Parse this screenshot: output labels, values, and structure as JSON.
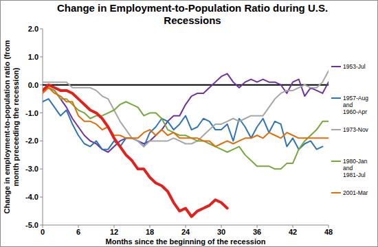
{
  "chart_data": {
    "type": "line",
    "title": "Change in Employment-to-Population Ratio during U.S. Recessions",
    "x_label": "Months since the beginning of the recession",
    "y_label": "Change in employment-to-population ratio (from month preceeding the recession)",
    "x": [
      0,
      1,
      2,
      3,
      4,
      5,
      6,
      7,
      8,
      9,
      10,
      11,
      12,
      13,
      14,
      15,
      16,
      17,
      18,
      19,
      20,
      21,
      22,
      23,
      24,
      25,
      26,
      27,
      28,
      29,
      30,
      31,
      32,
      33,
      34,
      35,
      36,
      37,
      38,
      39,
      40,
      41,
      42,
      43,
      44,
      45,
      46,
      47,
      48
    ],
    "xlim": [
      0,
      48
    ],
    "xticks": [
      0,
      6,
      12,
      18,
      24,
      30,
      36,
      42,
      48
    ],
    "ylim": [
      -5,
      2
    ],
    "yticks": [
      {
        "value": -5,
        "label": "-5.0"
      },
      {
        "value": -4,
        "label": "-4.0"
      },
      {
        "value": -3,
        "label": "-3.0"
      },
      {
        "value": -2,
        "label": "-2.0"
      },
      {
        "value": -1,
        "label": "-1.0"
      },
      {
        "value": 0,
        "label": "0.0"
      },
      {
        "value": 1,
        "label": "1.0"
      },
      {
        "value": 2,
        "label": "2.0"
      }
    ],
    "grid": false,
    "legend": "right",
    "series": [
      {
        "name": "1953-Jul",
        "color": "#7030a0",
        "values": [
          -0.2,
          -0.1,
          -0.2,
          -0.5,
          -0.8,
          -1.2,
          -1.5,
          -1.8,
          -2.0,
          -2.1,
          -2.3,
          -2.4,
          -2.2,
          -2.0,
          -1.9,
          -1.9,
          -2.0,
          -2.1,
          -2.0,
          -1.8,
          -1.6,
          -1.3,
          -1.1,
          -1.1,
          -0.7,
          -0.4,
          -0.3,
          -0.3,
          -0.1,
          0.1,
          0.3,
          0.4,
          0.1,
          -0.1,
          0.1,
          0.2,
          0.1,
          0.2,
          0.1,
          0.1,
          0.0,
          -0.3,
          0.1,
          0.2,
          -0.4,
          -0.1,
          -0.2,
          -0.3,
          0.1
        ]
      },
      {
        "name": "1957-Aug and 1960-Apr",
        "color": "#2e75b6",
        "values": [
          -0.6,
          -0.5,
          -0.8,
          -1.1,
          -0.9,
          -1.4,
          -1.8,
          -2.1,
          -2.2,
          -2.0,
          -2.3,
          -2.3,
          -2.0,
          -2.2,
          -1.9,
          -1.9,
          -2.0,
          -2.2,
          -1.7,
          -1.5,
          -1.2,
          -1.3,
          -1.6,
          -1.4,
          -1.1,
          -1.6,
          -1.5,
          -1.2,
          -1.3,
          -1.6,
          -1.6,
          -1.4,
          -2.0,
          -1.2,
          -1.5,
          -1.9,
          -1.5,
          -1.2,
          -1.7,
          -1.3,
          -1.4,
          -2.2,
          -1.9,
          -2.3,
          -2.1,
          -2.0,
          -2.3,
          -2.2,
          null
        ]
      },
      {
        "name": "1973-Nov",
        "color": "#a6a6a6",
        "values": [
          0.1,
          0.1,
          0.1,
          0.1,
          0.1,
          -0.1,
          -0.1,
          -0.1,
          -0.1,
          -0.2,
          -0.4,
          -0.5,
          -0.9,
          -1.3,
          -1.6,
          -1.9,
          -2.0,
          -2.2,
          -2.0,
          -2.0,
          -2.0,
          -2.0,
          -1.9,
          -2.0,
          -2.1,
          -2.1,
          -2.0,
          -1.8,
          -1.6,
          -1.4,
          -1.4,
          -1.3,
          -1.2,
          -1.3,
          -1.2,
          -1.1,
          -1.1,
          -1.1,
          -0.8,
          -0.5,
          -0.3,
          -0.2,
          -0.2,
          -0.1,
          0.0,
          -0.1,
          -0.1,
          0.1,
          0.5
        ]
      },
      {
        "name": "1980-Jan and 1981-Jul",
        "color": "#77a83a",
        "values": [
          -0.2,
          -0.1,
          -0.2,
          -0.5,
          -0.5,
          -0.7,
          -0.9,
          -1.0,
          -1.2,
          -1.1,
          -1.1,
          -1.0,
          -0.9,
          -0.7,
          -0.6,
          -0.7,
          -0.8,
          -1.1,
          -1.0,
          -1.0,
          -1.2,
          -1.6,
          -1.7,
          -1.8,
          -1.8,
          -1.9,
          -2.0,
          -2.0,
          -2.1,
          -2.2,
          -2.3,
          -2.4,
          -2.3,
          -2.2,
          -2.5,
          -2.7,
          -2.9,
          -2.9,
          -2.9,
          -3.0,
          -3.0,
          -2.8,
          -2.8,
          -2.3,
          -2.0,
          -1.8,
          -1.6,
          -1.3,
          -1.3
        ]
      },
      {
        "name": "2001-Mar",
        "color": "#e36c0a",
        "values": [
          -0.3,
          -0.1,
          -0.3,
          -0.4,
          -0.6,
          -0.6,
          -1.1,
          -1.3,
          -1.3,
          -1.4,
          -1.6,
          -1.5,
          -1.8,
          -1.8,
          -1.9,
          -1.9,
          -1.9,
          -1.7,
          -1.6,
          -1.8,
          -1.6,
          -1.8,
          -1.7,
          -1.9,
          -1.9,
          -1.9,
          -1.9,
          -2.0,
          -2.0,
          -2.2,
          -2.1,
          -2.0,
          -2.1,
          -2.0,
          -1.9,
          -1.9,
          -1.8,
          -1.9,
          -1.7,
          -1.8,
          -1.9,
          -1.7,
          -1.8,
          -1.9,
          -1.9,
          -1.9,
          -1.9,
          -1.9,
          -1.9
        ]
      },
      {
        "color": "#e3211c",
        "line_style": "thick",
        "values": [
          -0.2,
          0.0,
          -0.1,
          -0.2,
          -0.2,
          -0.3,
          -0.5,
          -0.7,
          -0.9,
          -1.0,
          -1.2,
          -1.5,
          -1.9,
          -2.2,
          -2.5,
          -2.7,
          -3.0,
          -3.0,
          -3.3,
          -3.5,
          -3.6,
          -3.8,
          -4.2,
          -4.5,
          -4.4,
          -4.7,
          -4.5,
          -4.4,
          -4.3,
          -4.1,
          -4.2,
          -4.4,
          null,
          null,
          null,
          null,
          null,
          null,
          null,
          null,
          null,
          null,
          null,
          null,
          null,
          null,
          null,
          null,
          null
        ]
      }
    ]
  }
}
